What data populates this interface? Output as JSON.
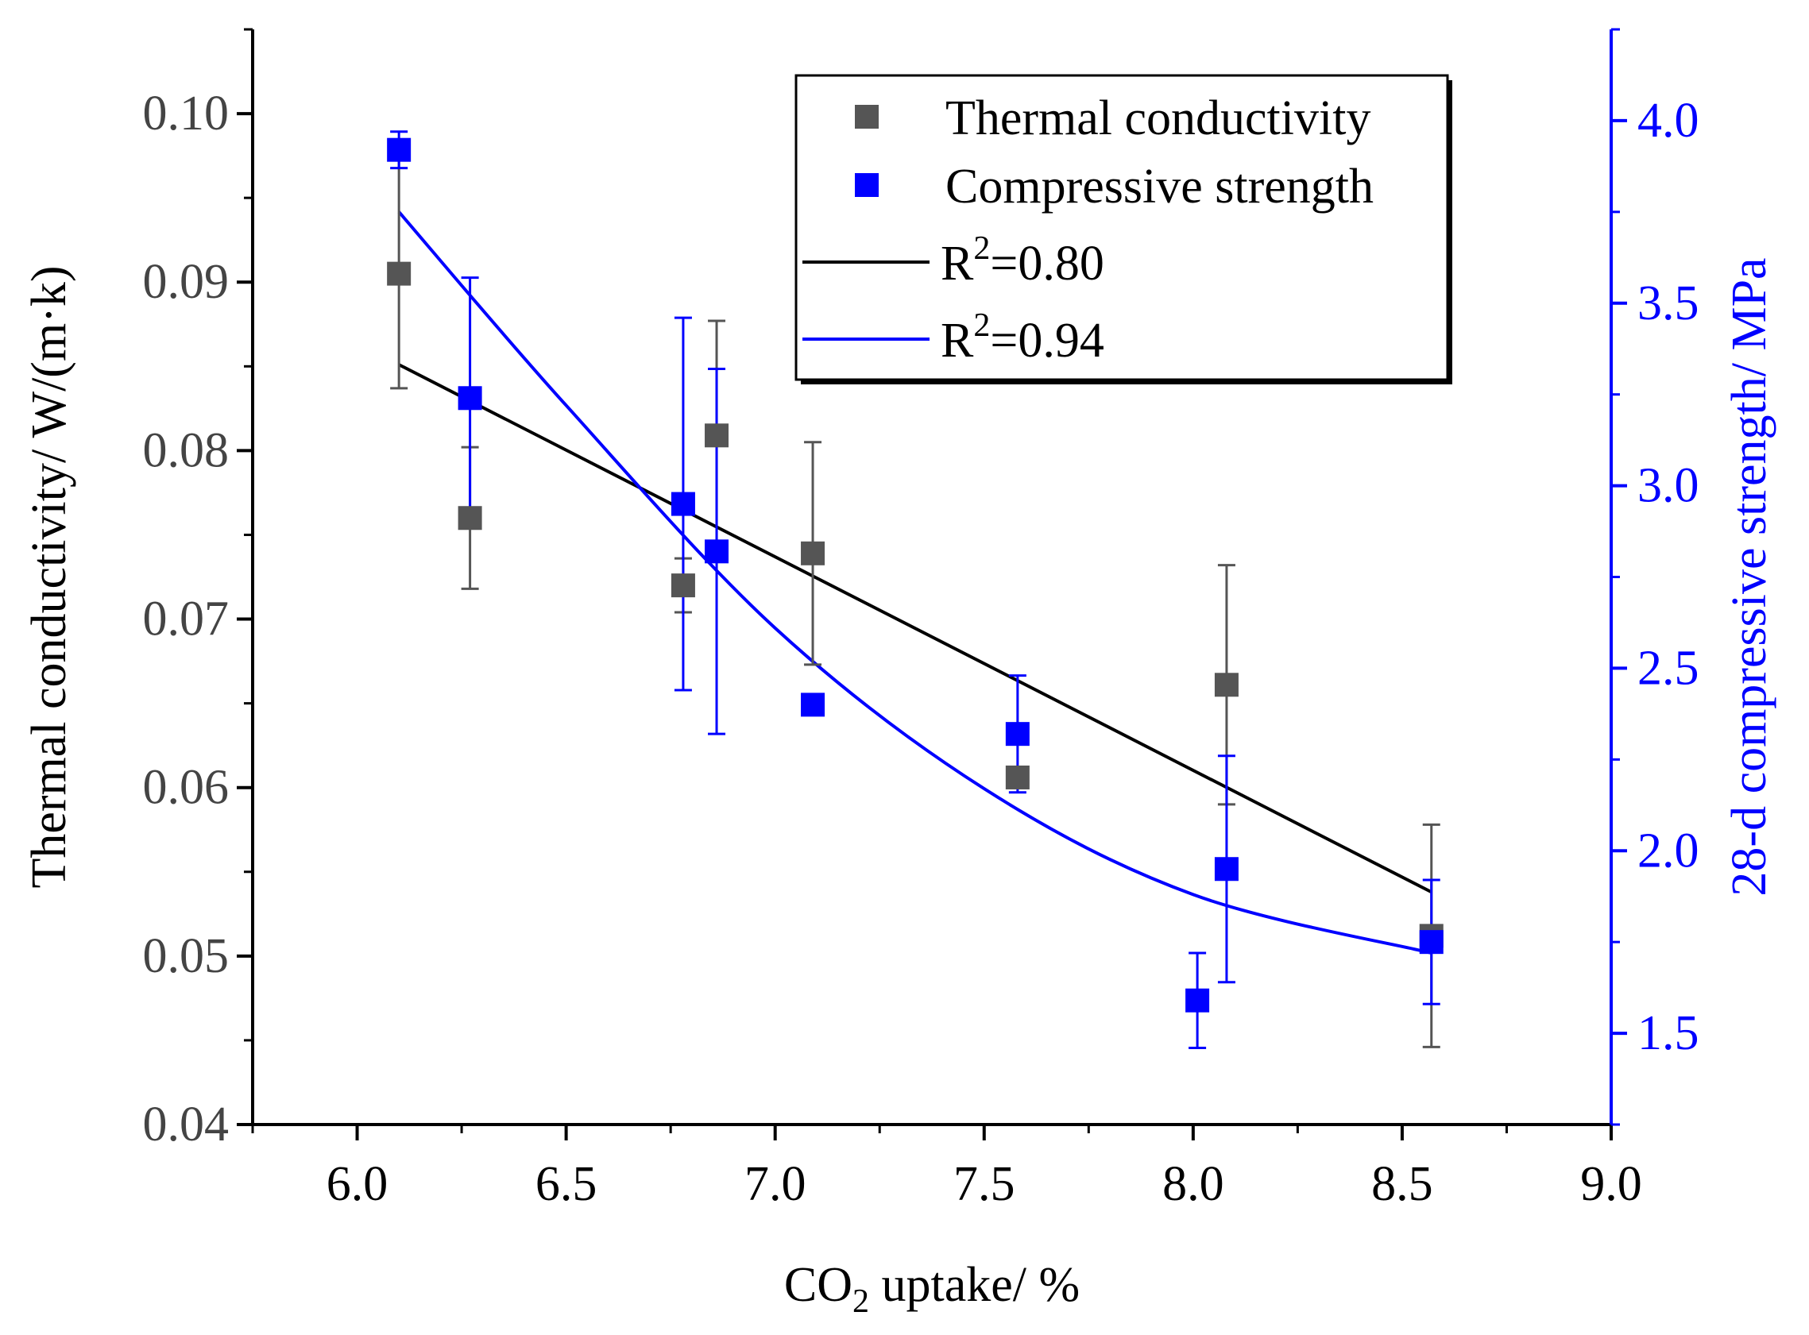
{
  "chart_data": {
    "type": "scatter",
    "title": "",
    "xlabel": {
      "prefix": "CO",
      "subscript": "2",
      "suffix": " uptake/ %"
    },
    "ylabel_left": "Thermal conductivity/ W/(m·k)",
    "ylabel_right": "28-d compressive strength/ MPa",
    "xlim": [
      5.75,
      9.0
    ],
    "ylim_left": [
      0.04,
      0.105
    ],
    "ylim_right": [
      1.25,
      4.25
    ],
    "x_ticks": [
      6.0,
      6.5,
      7.0,
      7.5,
      8.0,
      8.5,
      9.0
    ],
    "x_tick_labels": [
      "6.0",
      "6.5",
      "7.0",
      "7.5",
      "8.0",
      "8.5",
      "9.0"
    ],
    "y_left_ticks": [
      0.04,
      0.05,
      0.06,
      0.07,
      0.08,
      0.09,
      0.1
    ],
    "y_left_tick_labels": [
      "0.04",
      "0.05",
      "0.06",
      "0.07",
      "0.08",
      "0.09",
      "0.10"
    ],
    "y_right_ticks": [
      1.5,
      2.0,
      2.5,
      3.0,
      3.5,
      4.0
    ],
    "y_right_tick_labels": [
      "1.5",
      "2.0",
      "2.5",
      "3.0",
      "3.5",
      "4.0"
    ],
    "colors": {
      "thermal": "#555555",
      "strength": "#0000ff",
      "fit_thermal": "#000000",
      "fit_strength": "#0000ff",
      "axis_left": "#000000",
      "axis_right": "#0000ff",
      "tick_text_left": "#444444"
    },
    "series": [
      {
        "name": "Thermal conductivity",
        "axis": "left",
        "x": [
          6.1,
          6.27,
          6.78,
          6.86,
          7.09,
          7.58,
          8.08,
          8.57
        ],
        "y": [
          0.0905,
          0.076,
          0.072,
          0.0809,
          0.0739,
          0.0606,
          0.0661,
          0.0512
        ],
        "err": [
          0.0068,
          0.0042,
          0.0016,
          0.0068,
          0.0066,
          0.0004,
          0.0071,
          0.0066
        ]
      },
      {
        "name": "Compressive strength",
        "axis": "right",
        "x": [
          6.1,
          6.27,
          6.78,
          6.86,
          7.09,
          7.58,
          8.01,
          8.08,
          8.57
        ],
        "y": [
          3.92,
          3.24,
          2.95,
          2.82,
          2.4,
          2.32,
          1.59,
          1.95,
          1.75
        ],
        "err": [
          0.05,
          0.33,
          0.51,
          0.5,
          0.0,
          0.16,
          0.13,
          0.31,
          0.17
        ]
      }
    ],
    "fits": [
      {
        "name": "Thermal conductivity fit",
        "axis": "left",
        "label": {
          "prefix": "R",
          "superscript": "2",
          "suffix": "=0.80"
        },
        "points": [
          [
            6.1,
            0.0851
          ],
          [
            8.57,
            0.0538
          ]
        ]
      },
      {
        "name": "Compressive strength fit",
        "axis": "right",
        "label": {
          "prefix": "R",
          "superscript": "2",
          "suffix": "=0.94"
        },
        "points": [
          [
            6.1,
            3.75
          ],
          [
            6.5,
            3.22
          ],
          [
            7.0,
            2.61
          ],
          [
            7.5,
            2.17
          ],
          [
            8.0,
            1.88
          ],
          [
            8.57,
            1.72
          ]
        ]
      }
    ],
    "legend": {
      "position": "top-right",
      "entries": [
        {
          "type": "marker",
          "series": "Thermal conductivity",
          "text": "Thermal conductivity"
        },
        {
          "type": "marker",
          "series": "Compressive strength",
          "text": "Compressive strength"
        },
        {
          "type": "line",
          "series": "Thermal conductivity fit",
          "text": {
            "prefix": "R",
            "superscript": "2",
            "suffix": "=0.80"
          }
        },
        {
          "type": "line",
          "series": "Compressive strength fit",
          "text": {
            "prefix": "R",
            "superscript": "2",
            "suffix": "=0.94"
          }
        }
      ]
    },
    "grid": false
  }
}
